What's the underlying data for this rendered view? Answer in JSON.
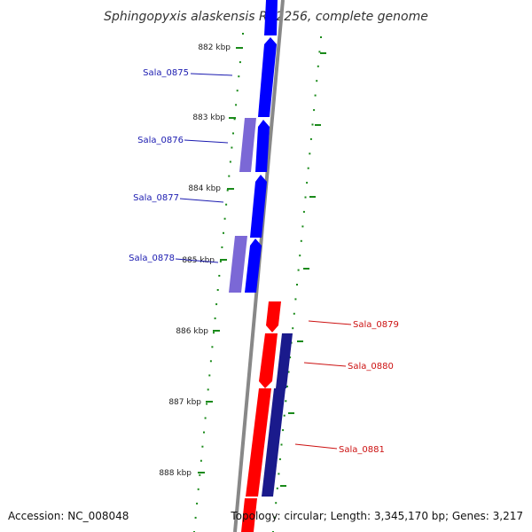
{
  "title": "Sphingopyxis alaskensis RB2256, complete genome",
  "accession": "Accession: NC_008048",
  "topology": "Topology: circular; Length: 3,345,170 bp; Genes: 3,217",
  "colors": {
    "forward": "#0000ff",
    "forward_light": "#7b68d6",
    "reverse": "#ff0000",
    "reverse_dark": "#1a1a8c",
    "backbone": "#888888",
    "tick": "#1a8a1a",
    "forward_label": "#1a1ab0",
    "reverse_label": "#cc1111"
  },
  "ticks": [
    "882 kbp",
    "883 kbp",
    "884 kbp",
    "885 kbp",
    "886 kbp",
    "887 kbp",
    "888 kbp"
  ],
  "genes": [
    {
      "name": "Sala_0875",
      "strand": "forward"
    },
    {
      "name": "Sala_0876",
      "strand": "forward"
    },
    {
      "name": "Sala_0877",
      "strand": "forward"
    },
    {
      "name": "Sala_0878",
      "strand": "forward"
    },
    {
      "name": "Sala_0879",
      "strand": "reverse"
    },
    {
      "name": "Sala_0880",
      "strand": "reverse"
    },
    {
      "name": "Sala_0881",
      "strand": "reverse"
    }
  ]
}
